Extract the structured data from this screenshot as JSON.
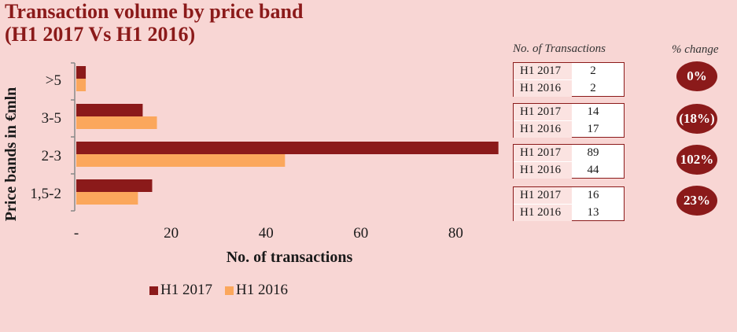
{
  "title": {
    "line1": "Transaction volume by price band",
    "line2": "(H1 2017 Vs H1 2016)"
  },
  "colors": {
    "h2017": "#8b1a1a",
    "h2016": "#fba75c"
  },
  "chart_data": {
    "type": "bar",
    "orientation": "horizontal",
    "categories": [
      ">5",
      "3-5",
      "2-3",
      "1,5-2"
    ],
    "series": [
      {
        "name": "H1 2017",
        "values": [
          2,
          14,
          89,
          16
        ]
      },
      {
        "name": "H1 2016",
        "values": [
          2,
          17,
          44,
          13
        ]
      }
    ],
    "xlabel": "No. of transactions",
    "ylabel": "Price bands in €mln",
    "xticks": [
      "-",
      "20",
      "40",
      "60",
      "80"
    ],
    "xlim": [
      0,
      89
    ],
    "grid": false,
    "legend": "bottom"
  },
  "legend": {
    "h2017": "H1 2017",
    "h2016": "H1 2016"
  },
  "table": {
    "header": "No. of Transactions",
    "change_header": "% change",
    "groups": [
      {
        "rows": [
          {
            "label": "H1 2017",
            "value": "2"
          },
          {
            "label": "H1 2016",
            "value": "2"
          }
        ],
        "change": "0%"
      },
      {
        "rows": [
          {
            "label": "H1 2017",
            "value": "14"
          },
          {
            "label": "H1 2016",
            "value": "17"
          }
        ],
        "change": "(18%)"
      },
      {
        "rows": [
          {
            "label": "H1 2017",
            "value": "89"
          },
          {
            "label": "H1 2016",
            "value": "44"
          }
        ],
        "change": "102%"
      },
      {
        "rows": [
          {
            "label": "H1 2017",
            "value": "16"
          },
          {
            "label": "H1 2016",
            "value": "13"
          }
        ],
        "change": "23%"
      }
    ]
  }
}
